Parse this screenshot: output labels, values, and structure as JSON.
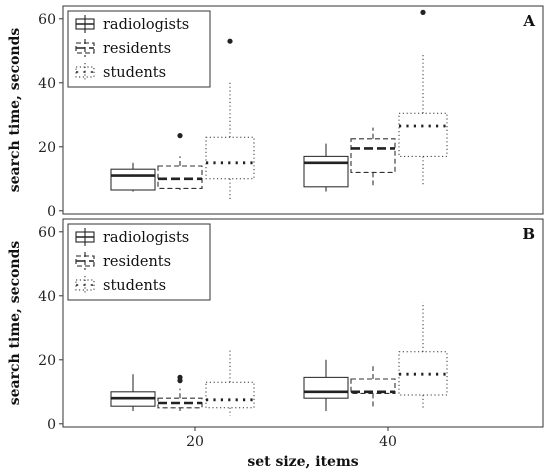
{
  "chart_data": [
    {
      "type": "box",
      "panel_label": "A",
      "ylabel": "search time, seconds",
      "ylim": [
        -1,
        64
      ],
      "yticks": [
        0,
        20,
        40,
        60
      ],
      "categories": [
        "20",
        "40"
      ],
      "legend": {
        "placement": "top-left"
      },
      "series": [
        {
          "name": "radiologists",
          "line_style": "solid",
          "boxes": [
            {
              "x": "20",
              "whisker_low": 6,
              "q1": 6.5,
              "median": 11,
              "q3": 13,
              "whisker_high": 15,
              "outliers": []
            },
            {
              "x": "40",
              "whisker_low": 6,
              "q1": 7.5,
              "median": 15,
              "q3": 17,
              "whisker_high": 21,
              "outliers": []
            }
          ]
        },
        {
          "name": "residents",
          "line_style": "dashed",
          "boxes": [
            {
              "x": "20",
              "whisker_low": 6.5,
              "q1": 7,
              "median": 10,
              "q3": 14,
              "whisker_high": 17,
              "outliers": [
                23.5
              ]
            },
            {
              "x": "40",
              "whisker_low": 8,
              "q1": 12,
              "median": 19.5,
              "q3": 22.5,
              "whisker_high": 26,
              "outliers": []
            }
          ]
        },
        {
          "name": "students",
          "line_style": "dotted",
          "boxes": [
            {
              "x": "20",
              "whisker_low": 3.5,
              "q1": 10,
              "median": 15,
              "q3": 23,
              "whisker_high": 40,
              "outliers": [
                53
              ]
            },
            {
              "x": "40",
              "whisker_low": 8,
              "q1": 17,
              "median": 26.5,
              "q3": 30.5,
              "whisker_high": 49,
              "outliers": [
                62
              ]
            }
          ]
        }
      ]
    },
    {
      "type": "box",
      "panel_label": "B",
      "ylabel": "search time, seconds",
      "xlabel": "set size, items",
      "ylim": [
        -1,
        64
      ],
      "yticks": [
        0,
        20,
        40,
        60
      ],
      "categories": [
        "20",
        "40"
      ],
      "legend": {
        "placement": "top-left"
      },
      "series": [
        {
          "name": "radiologists",
          "line_style": "solid",
          "boxes": [
            {
              "x": "20",
              "whisker_low": 4,
              "q1": 5.5,
              "median": 8,
              "q3": 10,
              "whisker_high": 15.5,
              "outliers": []
            },
            {
              "x": "40",
              "whisker_low": 4,
              "q1": 8,
              "median": 10,
              "q3": 14.5,
              "whisker_high": 20,
              "outliers": []
            }
          ]
        },
        {
          "name": "residents",
          "line_style": "dashed",
          "boxes": [
            {
              "x": "20",
              "whisker_low": 4,
              "q1": 5,
              "median": 6.5,
              "q3": 8,
              "whisker_high": 11,
              "outliers": [
                13.5,
                14.5
              ]
            },
            {
              "x": "40",
              "whisker_low": 5,
              "q1": 9.5,
              "median": 10,
              "q3": 14,
              "whisker_high": 18,
              "outliers": []
            }
          ]
        },
        {
          "name": "students",
          "line_style": "dotted",
          "boxes": [
            {
              "x": "20",
              "whisker_low": 2.5,
              "q1": 5,
              "median": 7.5,
              "q3": 13,
              "whisker_high": 23,
              "outliers": []
            },
            {
              "x": "40",
              "whisker_low": 4.5,
              "q1": 9,
              "median": 15.5,
              "q3": 22.5,
              "whisker_high": 38,
              "outliers": []
            }
          ]
        }
      ]
    }
  ]
}
